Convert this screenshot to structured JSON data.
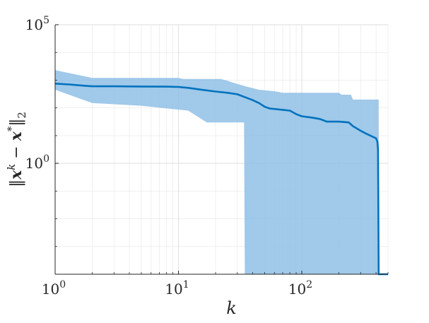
{
  "chart_data": {
    "type": "area",
    "xlabel": "k",
    "ylabel": "‖x^k − x*‖₂",
    "x_scale": "log",
    "y_scale": "log",
    "xlim": [
      1,
      500
    ],
    "ylim": [
      0.0001,
      100000
    ],
    "grid": true,
    "x_ticks": [
      {
        "value": 1,
        "base": "10",
        "exp": "0"
      },
      {
        "value": 10,
        "base": "10",
        "exp": "1"
      },
      {
        "value": 100,
        "base": "10",
        "exp": "2"
      }
    ],
    "y_ticks": [
      {
        "value": 1,
        "base": "10",
        "exp": "0"
      },
      {
        "value": 100000,
        "base": "10",
        "exp": "5"
      }
    ],
    "colors": {
      "line": "#0072bd",
      "band": "#8fc0e6",
      "axes": "#262626",
      "grid": "#e6e6e6"
    },
    "series": [
      {
        "role": "mean",
        "points": [
          [
            1,
            750
          ],
          [
            1.3,
            700
          ],
          [
            1.6,
            650
          ],
          [
            2,
            600
          ],
          [
            3,
            600
          ],
          [
            5,
            590
          ],
          [
            8,
            585
          ],
          [
            10,
            570
          ],
          [
            12,
            530
          ],
          [
            15,
            460
          ],
          [
            20,
            390
          ],
          [
            25,
            350
          ],
          [
            30,
            310
          ],
          [
            35,
            240
          ],
          [
            40,
            190
          ],
          [
            45,
            150
          ],
          [
            50,
            110
          ],
          [
            55,
            95
          ],
          [
            70,
            85
          ],
          [
            80,
            80
          ],
          [
            90,
            60
          ],
          [
            100,
            50
          ],
          [
            120,
            45
          ],
          [
            140,
            40
          ],
          [
            160,
            32
          ],
          [
            200,
            32
          ],
          [
            240,
            30
          ],
          [
            260,
            22
          ],
          [
            280,
            18
          ],
          [
            300,
            15
          ],
          [
            330,
            12
          ],
          [
            360,
            10
          ],
          [
            400,
            8
          ],
          [
            410,
            6
          ],
          [
            415,
            3
          ],
          [
            420,
            0.0001
          ],
          [
            500,
            0.0001
          ]
        ]
      }
    ],
    "band": {
      "role": "min-max range",
      "upper": [
        [
          1,
          2300
        ],
        [
          2,
          1200
        ],
        [
          10,
          1200
        ],
        [
          11,
          1100
        ],
        [
          22,
          1100
        ],
        [
          25,
          950
        ],
        [
          28,
          800
        ],
        [
          35,
          600
        ],
        [
          45,
          450
        ],
        [
          60,
          400
        ],
        [
          70,
          350
        ],
        [
          200,
          350
        ],
        [
          210,
          300
        ],
        [
          250,
          300
        ],
        [
          260,
          200
        ],
        [
          420,
          200
        ],
        [
          421,
          0.0001
        ],
        [
          500,
          0.0001
        ]
      ],
      "lower": [
        [
          1,
          450
        ],
        [
          2,
          150
        ],
        [
          5,
          120
        ],
        [
          12,
          80
        ],
        [
          17,
          30
        ],
        [
          34,
          30
        ],
        [
          34.5,
          0.0001
        ],
        [
          500,
          0.0001
        ]
      ]
    }
  }
}
